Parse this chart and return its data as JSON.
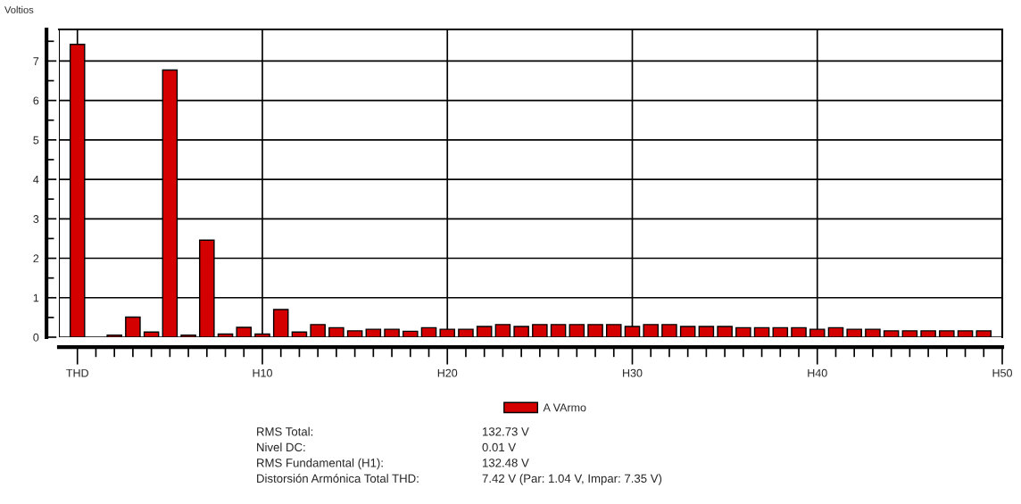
{
  "chart_data": {
    "type": "bar",
    "ylabel": "Voltios",
    "categories": [
      "THD",
      null,
      null,
      null,
      null,
      null,
      null,
      null,
      null,
      null,
      "H10",
      null,
      null,
      null,
      null,
      null,
      null,
      null,
      null,
      null,
      "H20",
      null,
      null,
      null,
      null,
      null,
      null,
      null,
      null,
      null,
      "H30",
      null,
      null,
      null,
      null,
      null,
      null,
      null,
      null,
      null,
      "H40",
      null,
      null,
      null,
      null,
      null,
      null,
      null,
      null,
      null,
      "H50"
    ],
    "series": [
      {
        "name": "A VArmo",
        "color": "#d40000",
        "values": [
          7.42,
          null,
          0.05,
          0.51,
          0.13,
          6.77,
          0.05,
          2.46,
          0.08,
          0.25,
          0.08,
          0.7,
          0.13,
          0.32,
          0.24,
          0.16,
          0.2,
          0.2,
          0.15,
          0.24,
          0.2,
          0.2,
          0.27,
          0.32,
          0.27,
          0.32,
          0.32,
          0.32,
          0.32,
          0.32,
          0.27,
          0.32,
          0.32,
          0.27,
          0.27,
          0.27,
          0.24,
          0.24,
          0.24,
          0.24,
          0.2,
          0.24,
          0.2,
          0.2,
          0.16,
          0.16,
          0.16,
          0.16,
          0.16,
          0.16,
          null
        ]
      }
    ],
    "ylim": [
      0,
      7.8
    ],
    "yticks": [
      0,
      1,
      2,
      3,
      4,
      5,
      6,
      7
    ],
    "grid": true,
    "legend": "bottom",
    "annotations": [
      "RMS Total:",
      "132.73 V",
      "Nivel DC:",
      "0.01 V",
      "RMS Fundamental (H1):",
      "132.48 V",
      "Distorsión Armónica Total THD:",
      "7.42 V (Par: 1.04 V, Impar: 7.35 V)"
    ]
  }
}
